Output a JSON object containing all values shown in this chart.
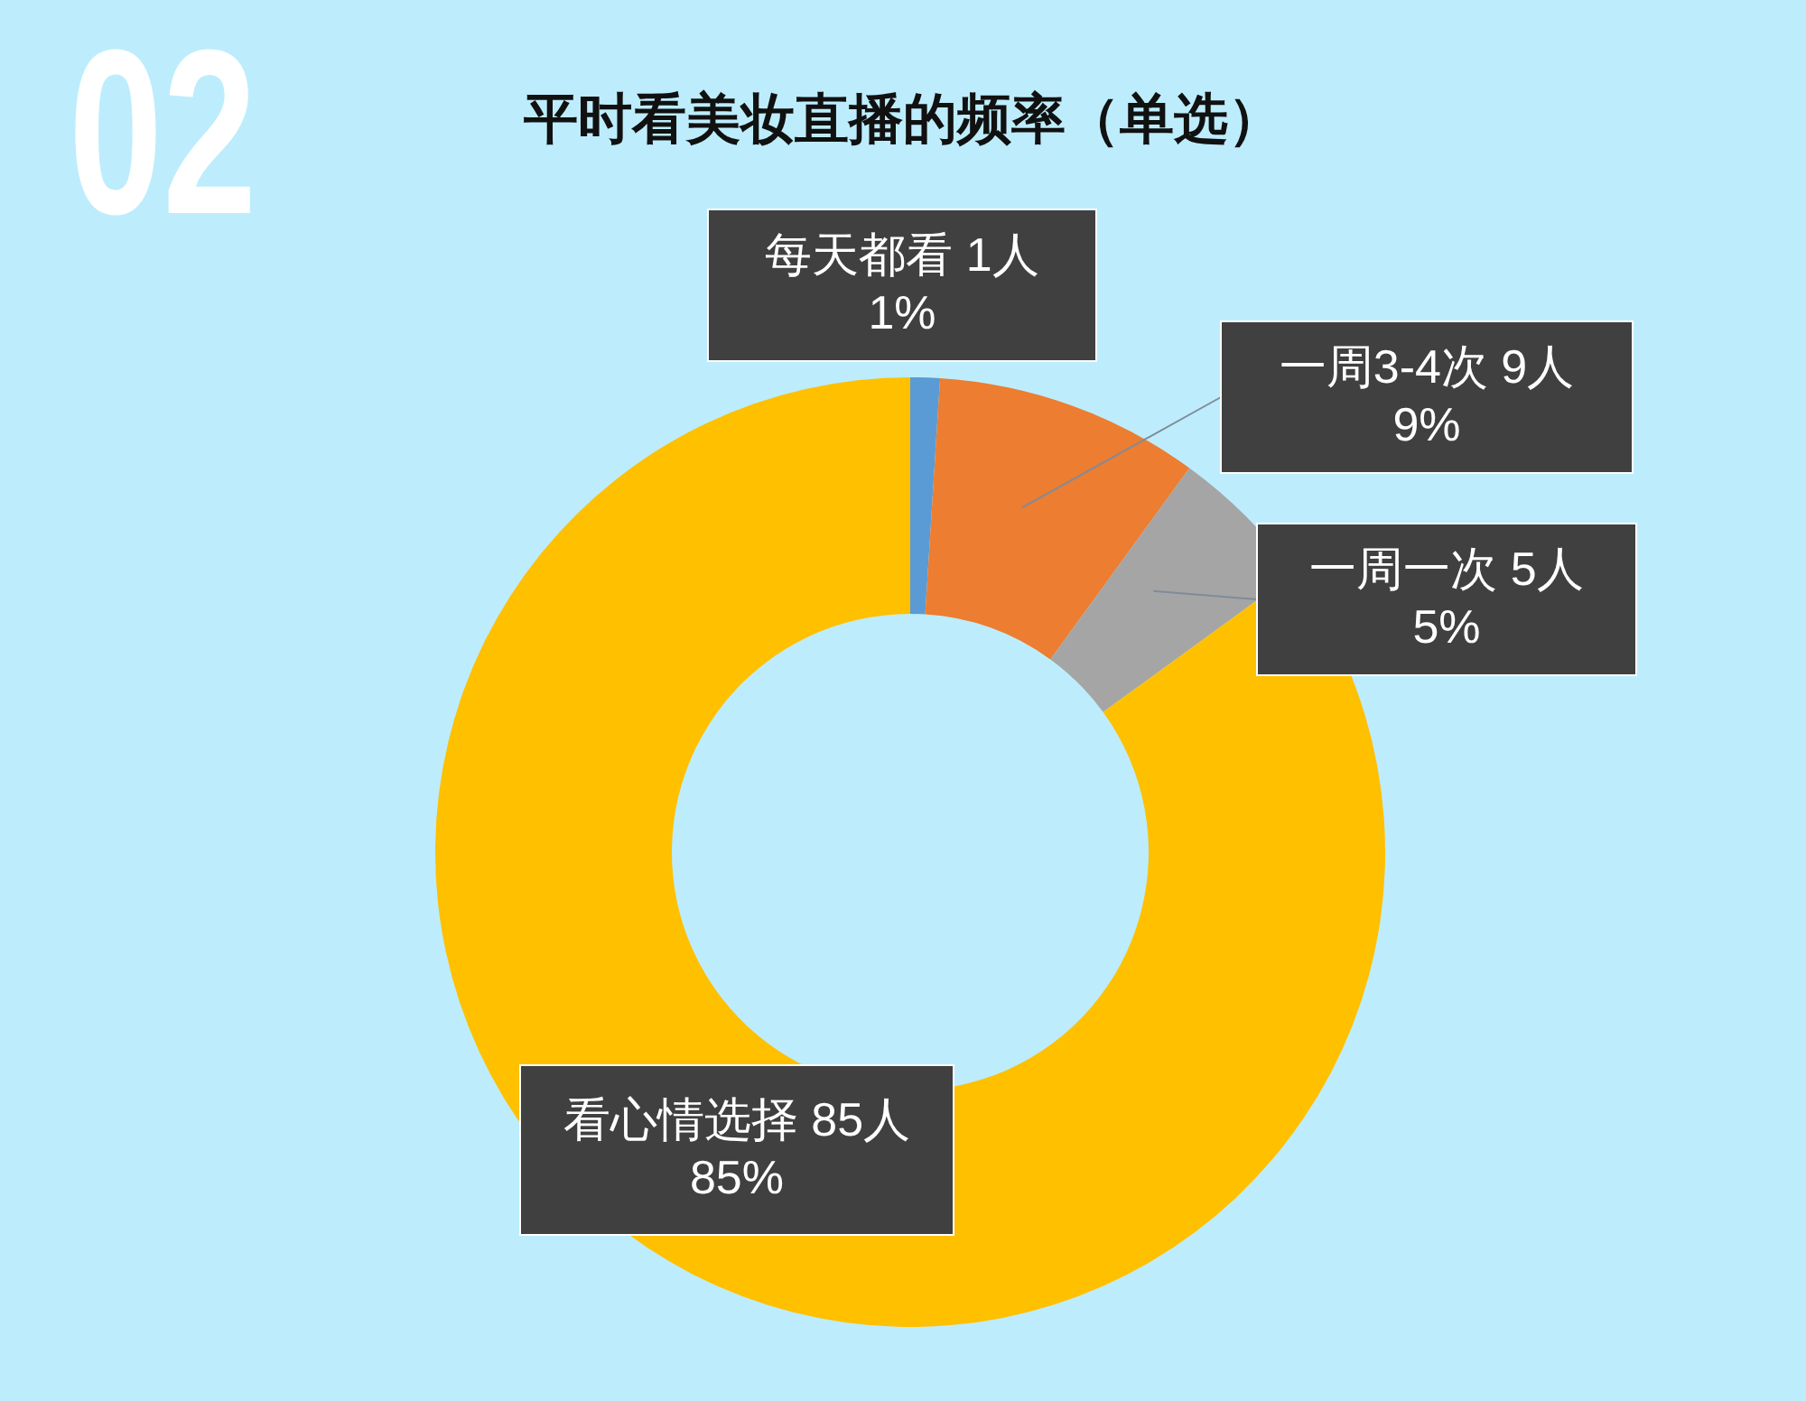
{
  "chart_data": {
    "type": "donut",
    "title": "平时看美妆直播的频率（单选）",
    "annotations": [
      "02"
    ],
    "categories": [
      "每天都看",
      "一周3-4次",
      "一周一次",
      "看心情选择"
    ],
    "values": [
      1,
      9,
      5,
      85
    ],
    "value_labels": [
      "1人\n1%",
      "9人\n9%",
      "5人\n5%",
      "85人\n85%"
    ],
    "colors": [
      "#5b9bd5",
      "#ed7d31",
      "#a5a5a5",
      "#ffc000"
    ]
  }
}
